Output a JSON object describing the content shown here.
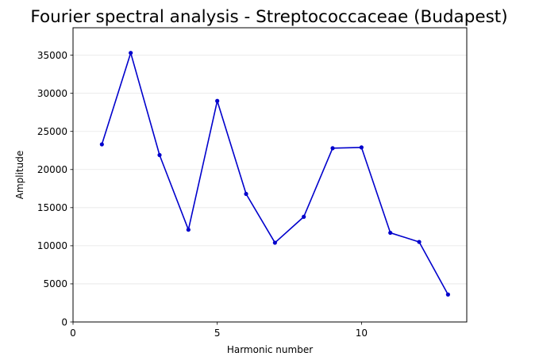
{
  "chart_data": {
    "type": "line",
    "title": "Fourier spectral analysis - Streptococcaceae (Budapest)",
    "xlabel": "Harmonic number",
    "ylabel": "Amplitude",
    "xlim": [
      0,
      13.65
    ],
    "ylim": [
      0,
      38600
    ],
    "xticks": [
      0,
      5,
      10
    ],
    "yticks": [
      0,
      5000,
      10000,
      15000,
      20000,
      25000,
      30000,
      35000
    ],
    "grid": "y",
    "legend": "none",
    "series": [
      {
        "color": "#0000cc",
        "x": [
          1,
          2,
          3,
          4,
          5,
          6,
          7,
          8,
          9,
          10,
          11,
          12,
          13
        ],
        "y": [
          23300,
          35300,
          21900,
          12100,
          29000,
          16800,
          10400,
          13800,
          22800,
          22900,
          11700,
          10500,
          3600
        ]
      }
    ]
  }
}
